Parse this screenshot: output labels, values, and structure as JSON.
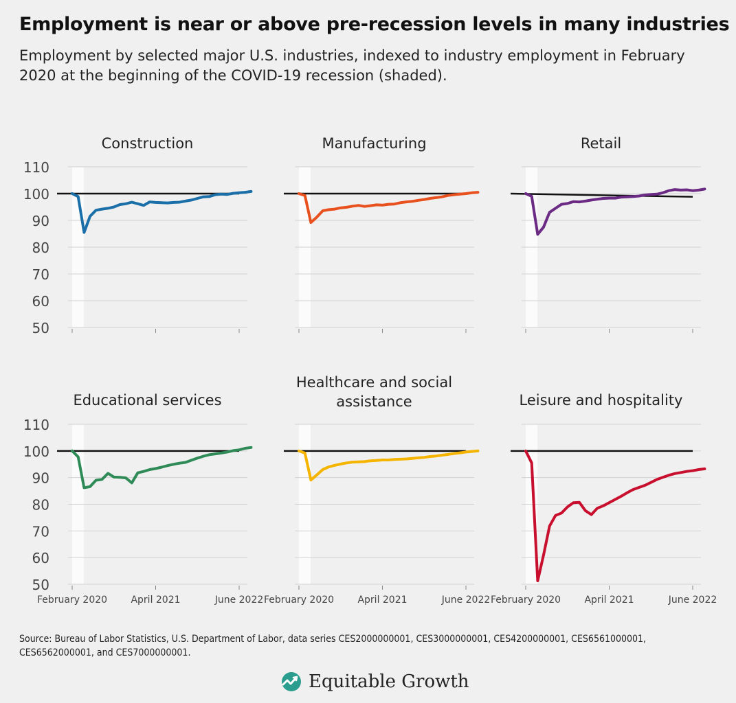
{
  "title": "Employment is near or above pre-recession levels in many industries",
  "subtitle": "Employment by selected major U.S. industries, indexed to industry employment in February 2020 at the beginning of the COVID-19 recession (shaded).",
  "source": "Source: Bureau of Labor Statistics, U.S. Department of Labor, data series CES2000000001, CES3000000001, CES4200000001, CES6561000001, CES6562000001, and CES7000000001.",
  "brand": {
    "name": "Equitable Growth",
    "logo_icon": "wave-growth-icon",
    "logo_color": "#2a9d8f"
  },
  "axis": {
    "y_ticks": [
      110,
      100,
      90,
      80,
      70,
      60,
      50
    ],
    "x_ticks": [
      "February 2020",
      "April 2021",
      "June 2022"
    ],
    "reference_line": 100,
    "recession_shading": "Feb 2020 – Apr 2020"
  },
  "chart_data": [
    {
      "type": "line",
      "title": "Construction",
      "color": "#1a6fa8",
      "ylim": [
        50,
        110
      ],
      "x": "months Feb 2020 – Sep 2022",
      "values": [
        100,
        98.9,
        85.5,
        91.5,
        93.8,
        94.2,
        94.5,
        95.0,
        95.9,
        96.2,
        96.8,
        96.2,
        95.6,
        96.9,
        96.7,
        96.6,
        96.5,
        96.7,
        96.8,
        97.2,
        97.6,
        98.2,
        98.8,
        98.9,
        99.6,
        99.8,
        99.7,
        100.1,
        100.3,
        100.5,
        100.8
      ]
    },
    {
      "type": "line",
      "title": "Manufacturing",
      "color": "#e8501e",
      "ylim": [
        50,
        110
      ],
      "x": "months Feb 2020 – Sep 2022",
      "values": [
        100,
        99.3,
        89.2,
        91.2,
        93.6,
        94.0,
        94.2,
        94.7,
        94.9,
        95.3,
        95.6,
        95.2,
        95.5,
        95.8,
        95.7,
        96.0,
        96.1,
        96.6,
        96.9,
        97.1,
        97.5,
        97.8,
        98.2,
        98.5,
        98.8,
        99.3,
        99.6,
        99.8,
        100.0,
        100.3,
        100.5
      ]
    },
    {
      "type": "line",
      "title": "Retail",
      "color": "#6b2a84",
      "ylim": [
        50,
        110
      ],
      "x": "months Feb 2020 – Sep 2022",
      "values": [
        100,
        99.0,
        84.8,
        87.5,
        93.0,
        94.5,
        96.0,
        96.3,
        97.0,
        96.9,
        97.2,
        97.6,
        97.9,
        98.2,
        98.3,
        98.3,
        98.7,
        98.8,
        98.9,
        99.1,
        99.5,
        99.7,
        99.8,
        100.3,
        101.1,
        101.5,
        101.3,
        101.4,
        101.1,
        101.3,
        101.7
      ]
    },
    {
      "type": "line",
      "title": "Educational services",
      "color": "#2e8b57",
      "ylim": [
        50,
        110
      ],
      "x": "months Feb 2020 – Sep 2022",
      "values": [
        100,
        97.8,
        86.2,
        86.6,
        89.0,
        89.3,
        91.6,
        90.2,
        90.1,
        89.9,
        88.0,
        91.8,
        92.3,
        93.0,
        93.4,
        93.9,
        94.5,
        95.0,
        95.4,
        95.7,
        96.5,
        97.3,
        98.0,
        98.6,
        98.9,
        99.2,
        99.6,
        100.1,
        100.4,
        101.0,
        101.3
      ]
    },
    {
      "type": "line",
      "title": "Healthcare and social assistance",
      "color": "#f5b400",
      "ylim": [
        50,
        110
      ],
      "x": "months Feb 2020 – Sep 2022",
      "values": [
        100,
        99.2,
        89.1,
        91.0,
        93.0,
        94.0,
        94.6,
        95.1,
        95.5,
        95.8,
        95.9,
        96.0,
        96.3,
        96.4,
        96.6,
        96.6,
        96.8,
        96.9,
        97.0,
        97.2,
        97.4,
        97.6,
        97.9,
        98.1,
        98.4,
        98.7,
        99.0,
        99.3,
        99.6,
        99.8,
        100.0
      ]
    },
    {
      "type": "line",
      "title": "Leisure and hospitality",
      "color": "#c8102e",
      "ylim": [
        50,
        110
      ],
      "x": "months Feb 2020 – Sep 2022",
      "values": [
        100,
        95.5,
        51.3,
        61.0,
        71.8,
        75.8,
        76.7,
        79.0,
        80.6,
        80.7,
        77.6,
        76.1,
        78.5,
        79.4,
        80.6,
        81.8,
        83.0,
        84.3,
        85.5,
        86.3,
        87.1,
        88.2,
        89.3,
        90.1,
        90.9,
        91.5,
        91.9,
        92.3,
        92.6,
        93.0,
        93.3
      ]
    }
  ]
}
